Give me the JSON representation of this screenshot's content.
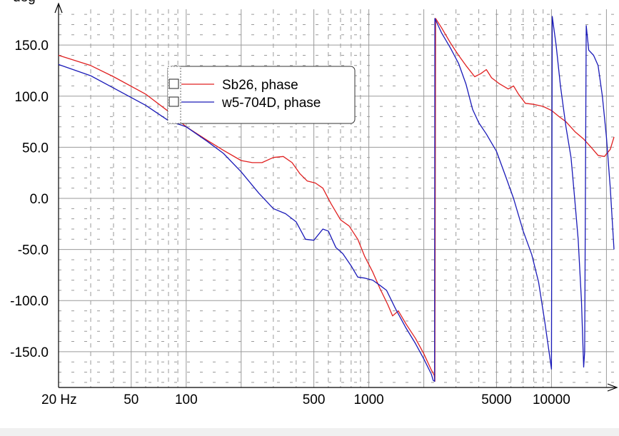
{
  "chart_data": {
    "type": "line",
    "ylabel": "deg",
    "xscale": "log",
    "xlim": [
      20,
      22000
    ],
    "ylim": [
      -185,
      185
    ],
    "grid": true,
    "legend_position": "top-left",
    "x_ticks": [
      {
        "value": 20,
        "label": "20 Hz"
      },
      {
        "value": 50,
        "label": "50"
      },
      {
        "value": 100,
        "label": "100"
      },
      {
        "value": 500,
        "label": "500"
      },
      {
        "value": 1000,
        "label": "1000"
      },
      {
        "value": 5000,
        "label": "5000"
      },
      {
        "value": 10000,
        "label": "10000"
      }
    ],
    "y_ticks": [
      {
        "value": 150,
        "label": "150.0"
      },
      {
        "value": 100,
        "label": "100.0"
      },
      {
        "value": 50,
        "label": "50.0"
      },
      {
        "value": 0,
        "label": "0.0"
      },
      {
        "value": -50,
        "label": "-50.0"
      },
      {
        "value": -100,
        "label": "-100.0"
      },
      {
        "value": -150,
        "label": "-150.0"
      }
    ],
    "series": [
      {
        "name": "Sb26, phase",
        "color": "#e02020",
        "points": [
          [
            20,
            140
          ],
          [
            30,
            130
          ],
          [
            40,
            119
          ],
          [
            60,
            102
          ],
          [
            80,
            85
          ],
          [
            100,
            70
          ],
          [
            130,
            57
          ],
          [
            160,
            47
          ],
          [
            200,
            37
          ],
          [
            230,
            35
          ],
          [
            260,
            35
          ],
          [
            300,
            40
          ],
          [
            340,
            41
          ],
          [
            380,
            35
          ],
          [
            420,
            24
          ],
          [
            460,
            17
          ],
          [
            510,
            15
          ],
          [
            560,
            10
          ],
          [
            620,
            -5
          ],
          [
            700,
            -21
          ],
          [
            780,
            -27
          ],
          [
            870,
            -40
          ],
          [
            950,
            -57
          ],
          [
            1050,
            -72
          ],
          [
            1150,
            -88
          ],
          [
            1270,
            -104
          ],
          [
            1350,
            -115
          ],
          [
            1450,
            -110
          ],
          [
            1600,
            -123
          ],
          [
            1800,
            -137
          ],
          [
            2000,
            -152
          ],
          [
            2200,
            -168
          ],
          [
            2280,
            -173
          ],
          [
            2300,
            -179
          ],
          [
            2320,
            176
          ],
          [
            2500,
            167
          ],
          [
            2800,
            152
          ],
          [
            3100,
            140
          ],
          [
            3400,
            130
          ],
          [
            3800,
            119
          ],
          [
            4100,
            122
          ],
          [
            4400,
            126
          ],
          [
            4700,
            118
          ],
          [
            5200,
            112
          ],
          [
            5800,
            107
          ],
          [
            6200,
            110
          ],
          [
            6600,
            102
          ],
          [
            7200,
            93
          ],
          [
            8000,
            92
          ],
          [
            9000,
            90
          ],
          [
            10000,
            86
          ],
          [
            11000,
            80
          ],
          [
            12000,
            75
          ],
          [
            13500,
            65
          ],
          [
            15000,
            58
          ],
          [
            16500,
            50
          ],
          [
            18000,
            42
          ],
          [
            19500,
            41
          ],
          [
            21000,
            48
          ],
          [
            22000,
            60
          ]
        ]
      },
      {
        "name": "w5-704D, phase",
        "color": "#1a1ab8",
        "points": [
          [
            20,
            131
          ],
          [
            30,
            120
          ],
          [
            40,
            108
          ],
          [
            60,
            91
          ],
          [
            80,
            76
          ],
          [
            100,
            70
          ],
          [
            130,
            56
          ],
          [
            160,
            44
          ],
          [
            200,
            26
          ],
          [
            250,
            5
          ],
          [
            300,
            -10
          ],
          [
            350,
            -15
          ],
          [
            400,
            -23
          ],
          [
            450,
            -40
          ],
          [
            500,
            -41
          ],
          [
            560,
            -30
          ],
          [
            600,
            -32
          ],
          [
            660,
            -48
          ],
          [
            720,
            -54
          ],
          [
            800,
            -66
          ],
          [
            870,
            -77
          ],
          [
            950,
            -78
          ],
          [
            1050,
            -80
          ],
          [
            1150,
            -85
          ],
          [
            1250,
            -90
          ],
          [
            1400,
            -108
          ],
          [
            1600,
            -127
          ],
          [
            1800,
            -142
          ],
          [
            2000,
            -157
          ],
          [
            2200,
            -172
          ],
          [
            2250,
            -178
          ],
          [
            2290,
            -179
          ],
          [
            2300,
            176
          ],
          [
            2500,
            162
          ],
          [
            2800,
            147
          ],
          [
            3100,
            132
          ],
          [
            3400,
            112
          ],
          [
            3700,
            87
          ],
          [
            4000,
            74
          ],
          [
            4400,
            63
          ],
          [
            5000,
            46
          ],
          [
            5600,
            22
          ],
          [
            6200,
            0
          ],
          [
            7000,
            -32
          ],
          [
            7800,
            -55
          ],
          [
            8500,
            -82
          ],
          [
            9200,
            -121
          ],
          [
            9700,
            -150
          ],
          [
            10000,
            -167
          ],
          [
            10100,
            178
          ],
          [
            10600,
            150
          ],
          [
            11200,
            110
          ],
          [
            12000,
            70
          ],
          [
            12800,
            40
          ],
          [
            13400,
            0
          ],
          [
            14000,
            -40
          ],
          [
            14600,
            -100
          ],
          [
            15000,
            -165
          ],
          [
            15200,
            -150
          ],
          [
            15500,
            169
          ],
          [
            16000,
            145
          ],
          [
            17000,
            140
          ],
          [
            18000,
            130
          ],
          [
            19000,
            100
          ],
          [
            20000,
            60
          ],
          [
            21000,
            10
          ],
          [
            22000,
            -50
          ]
        ]
      }
    ]
  }
}
